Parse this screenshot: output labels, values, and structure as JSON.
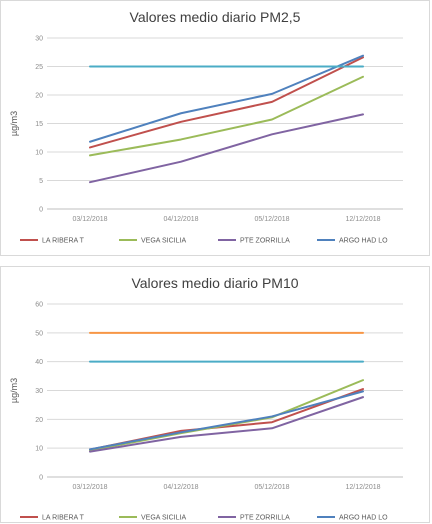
{
  "chart_data": [
    {
      "type": "line",
      "title": "Valores medio diario PM2,5",
      "ylabel": "µg/m3",
      "ylim": [
        0,
        30
      ],
      "yticks": [
        "0",
        "5",
        "10",
        "15",
        "20",
        "25",
        "30"
      ],
      "categories": [
        "03/12/2018",
        "04/12/2018",
        "05/12/2018",
        "12/12/2018"
      ],
      "grid": true,
      "legend_position": "bottom",
      "series": [
        {
          "name": "LA RIBERA T",
          "color": "#c0504d",
          "values": [
            10.8,
            15.3,
            18.8,
            26.6
          ]
        },
        {
          "name": "VEGA SICILIA",
          "color": "#9bbb59",
          "values": [
            9.4,
            12.2,
            15.7,
            23.2
          ]
        },
        {
          "name": "PTE ZORRILLA",
          "color": "#8064a2",
          "values": [
            4.7,
            8.3,
            13.1,
            16.6
          ]
        },
        {
          "name": "ARGO HAD LO",
          "color": "#4f81bd",
          "values": [
            11.8,
            16.8,
            20.2,
            26.9
          ]
        },
        {
          "name": "",
          "color": "#4bacc6",
          "values": [
            25,
            25,
            25,
            25
          ]
        }
      ]
    },
    {
      "type": "line",
      "title": "Valores medio diario PM10",
      "ylabel": "µg/m3",
      "ylim": [
        0,
        60
      ],
      "yticks": [
        "0",
        "10",
        "20",
        "30",
        "40",
        "50",
        "60"
      ],
      "categories": [
        "03/12/2018",
        "04/12/2018",
        "05/12/2018",
        "12/12/2018"
      ],
      "grid": true,
      "legend_position": "bottom",
      "series": [
        {
          "name": "LA RIBERA T",
          "color": "#c0504d",
          "values": [
            9.5,
            16,
            19,
            30.5
          ]
        },
        {
          "name": "VEGA SICILIA",
          "color": "#9bbb59",
          "values": [
            9.2,
            15.2,
            20.7,
            33.6
          ]
        },
        {
          "name": "PTE ZORRILLA",
          "color": "#8064a2",
          "values": [
            8.8,
            13.9,
            16.9,
            27.7
          ]
        },
        {
          "name": "ARGO HAD LO",
          "color": "#4f81bd",
          "values": [
            9.6,
            15.5,
            21,
            29.7
          ]
        },
        {
          "name": "",
          "color": "#f79646",
          "values": [
            50,
            50,
            50,
            50
          ]
        },
        {
          "name": "",
          "color": "#4bacc6",
          "values": [
            40,
            40,
            40,
            40
          ]
        }
      ]
    }
  ]
}
